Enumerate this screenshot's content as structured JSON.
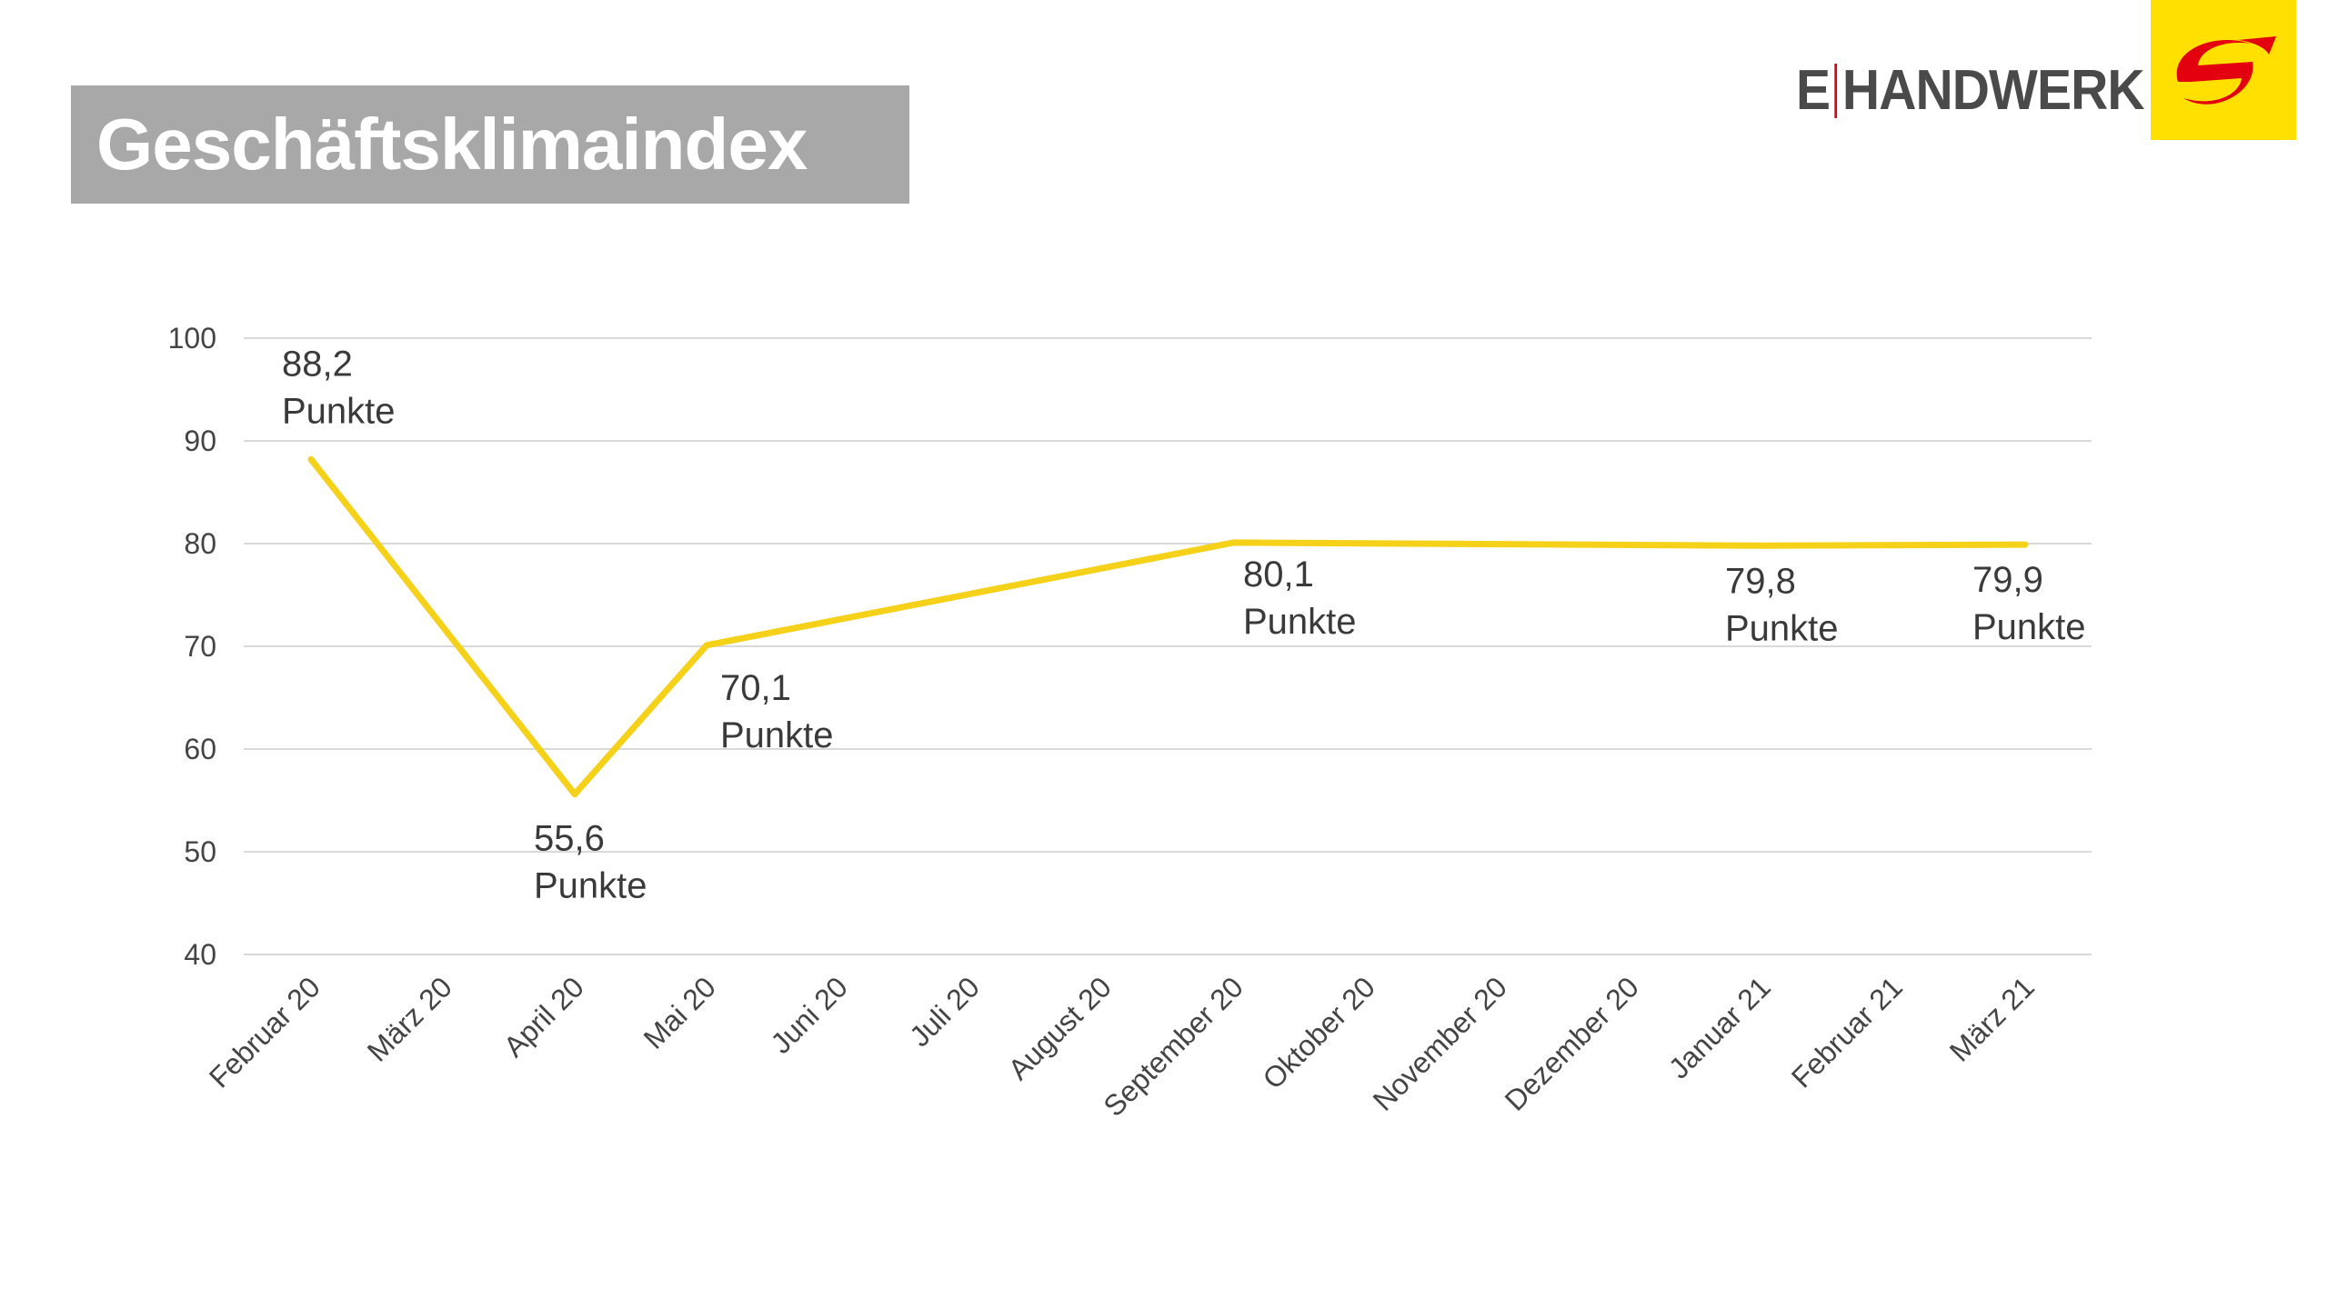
{
  "header": {
    "title": "Geschäftsklimaindex"
  },
  "logo": {
    "text_left": "E",
    "text_right": "HANDWERK",
    "square_color": "#ffe000",
    "arrow_color": "#e3000f",
    "separator_color": "#e3000f"
  },
  "chart_data": {
    "type": "line",
    "title": "",
    "xlabel": "",
    "ylabel": "",
    "ylim": [
      40,
      100
    ],
    "yticks": [
      40,
      50,
      60,
      70,
      80,
      90,
      100
    ],
    "grid": true,
    "legend": "none",
    "line_color": "#f5d11a",
    "categories": [
      "Februar 20",
      "März 20",
      "April 20",
      "Mai 20",
      "Juni 20",
      "Juli 20",
      "August 20",
      "September 20",
      "Oktober 20",
      "November 20",
      "Dezember 20",
      "Januar 21",
      "Februar 21",
      "März 21"
    ],
    "series": [
      {
        "values": [
          88.2,
          null,
          55.6,
          70.1,
          null,
          null,
          null,
          80.1,
          null,
          null,
          null,
          79.8,
          null,
          79.9
        ]
      }
    ],
    "data_labels": [
      {
        "category": "Februar 20",
        "value_text": "88,2",
        "unit": "Punkte"
      },
      {
        "category": "April 20",
        "value_text": "55,6",
        "unit": "Punkte"
      },
      {
        "category": "Mai 20",
        "value_text": "70,1",
        "unit": "Punkte"
      },
      {
        "category": "September 20",
        "value_text": "80,1",
        "unit": "Punkte"
      },
      {
        "category": "Januar 21",
        "value_text": "79,8",
        "unit": "Punkte"
      },
      {
        "category": "März 21",
        "value_text": "79,9",
        "unit": "Punkte"
      }
    ]
  }
}
